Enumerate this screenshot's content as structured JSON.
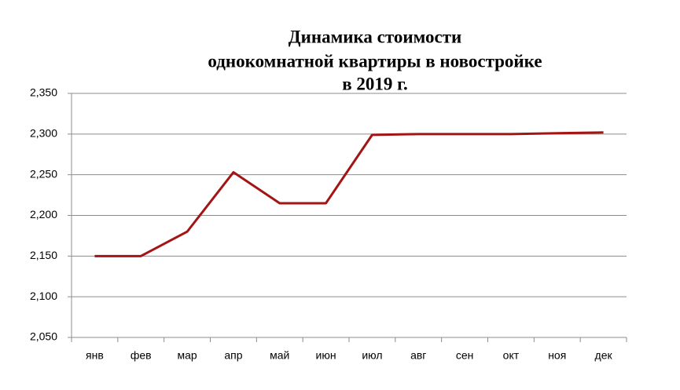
{
  "chart_data": {
    "type": "line",
    "title": [
      "Динамика стоимости",
      "однокомнатной квартиры в новостройке",
      "в 2019 г."
    ],
    "categories": [
      "янв",
      "фев",
      "мар",
      "апр",
      "май",
      "июн",
      "июл",
      "авг",
      "сен",
      "окт",
      "ноя",
      "дек"
    ],
    "values": [
      2.15,
      2.15,
      2.18,
      2.253,
      2.215,
      2.215,
      2.299,
      2.3,
      2.3,
      2.3,
      2.301,
      2.302
    ],
    "color": "#a31515",
    "ylim": [
      2.05,
      2.35
    ],
    "yticks": [
      {
        "value": 2.05,
        "label": "2,050"
      },
      {
        "value": 2.1,
        "label": "2,100"
      },
      {
        "value": 2.15,
        "label": "2,150"
      },
      {
        "value": 2.2,
        "label": "2,200"
      },
      {
        "value": 2.25,
        "label": "2,250"
      },
      {
        "value": 2.3,
        "label": "2,300"
      },
      {
        "value": 2.35,
        "label": "2,350"
      }
    ],
    "grid": true
  }
}
